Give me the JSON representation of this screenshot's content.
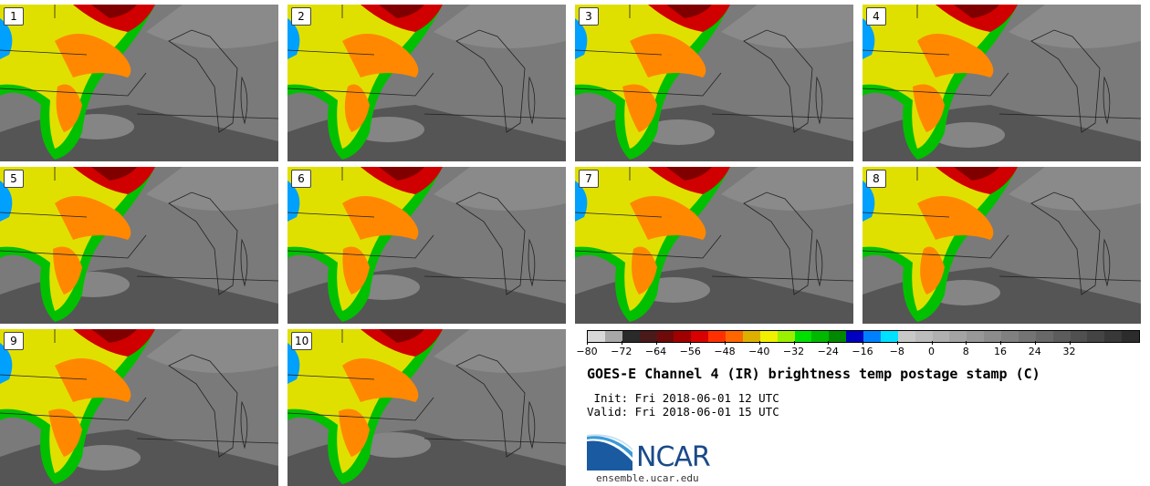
{
  "panels": [
    {
      "label": "1"
    },
    {
      "label": "2"
    },
    {
      "label": "3"
    },
    {
      "label": "4"
    },
    {
      "label": "5"
    },
    {
      "label": "6"
    },
    {
      "label": "7"
    },
    {
      "label": "8"
    },
    {
      "label": "9"
    },
    {
      "label": "10"
    }
  ],
  "colorbar": {
    "colors": [
      "#d8d8d8",
      "#a8a8a8",
      "#2a2a2a",
      "#4a1a1a",
      "#6e0a0a",
      "#a00000",
      "#d80000",
      "#ff3000",
      "#ff6600",
      "#ddb000",
      "#f0f000",
      "#9af000",
      "#00e000",
      "#00b800",
      "#008800",
      "#0000c0",
      "#0080ff",
      "#00e0ff",
      "#c8c8c8",
      "#bcbcbc",
      "#b0b0b0",
      "#a4a4a4",
      "#989898",
      "#8c8c8c",
      "#808080",
      "#747474",
      "#686868",
      "#5c5c5c",
      "#505050",
      "#444444",
      "#383838",
      "#2c2c2c"
    ],
    "tick_labels": [
      "−80",
      "−72",
      "−64",
      "−56",
      "−48",
      "−40",
      "−32",
      "−24",
      "−16",
      "−8",
      "0",
      "8",
      "16",
      "24",
      "32"
    ]
  },
  "title": "GOES-E Channel 4 (IR) brightness temp postage stamp (C)",
  "init": " Init: Fri 2018-06-01 12 UTC",
  "valid": "Valid: Fri 2018-06-01 15 UTC",
  "logo": {
    "text": "NCAR",
    "site": "ensemble.ucar.edu"
  }
}
